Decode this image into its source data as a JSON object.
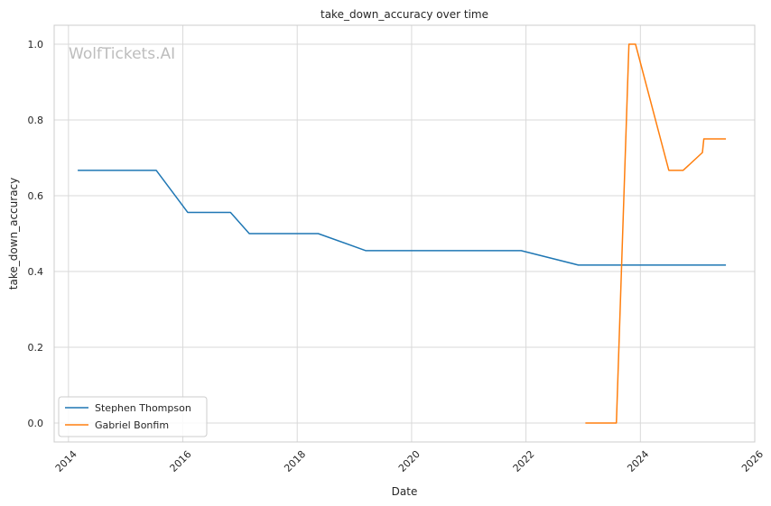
{
  "chart_data": {
    "type": "line",
    "title": "take_down_accuracy over time",
    "xlabel": "Date",
    "ylabel": "take_down_accuracy",
    "watermark": "WolfTickets.AI",
    "xlim": [
      2013.75,
      2026.0
    ],
    "ylim": [
      -0.05,
      1.05
    ],
    "x_ticks": [
      2014,
      2016,
      2018,
      2020,
      2022,
      2024,
      2026
    ],
    "x_tick_labels": [
      "2014",
      "2016",
      "2018",
      "2020",
      "2022",
      "2024",
      "2026"
    ],
    "y_ticks": [
      0.0,
      0.2,
      0.4,
      0.6,
      0.8,
      1.0
    ],
    "y_tick_labels": [
      "0.0",
      "0.2",
      "0.4",
      "0.6",
      "0.8",
      "1.0"
    ],
    "grid": true,
    "legend_position": "lower-left",
    "series": [
      {
        "name": "Stephen Thompson",
        "color": "#1f77b4",
        "points": [
          [
            "2014-03-01",
            0.667
          ],
          [
            "2015-07-15",
            0.667
          ],
          [
            "2016-02-01",
            0.556
          ],
          [
            "2016-11-01",
            0.556
          ],
          [
            "2017-03-01",
            0.5
          ],
          [
            "2018-05-15",
            0.5
          ],
          [
            "2019-03-15",
            0.455
          ],
          [
            "2021-12-01",
            0.455
          ],
          [
            "2022-12-01",
            0.417
          ],
          [
            "2025-07-01",
            0.417
          ]
        ]
      },
      {
        "name": "Gabriel Bonfim",
        "color": "#ff7f0e",
        "points": [
          [
            "2023-01-15",
            0.0
          ],
          [
            "2023-08-01",
            0.0
          ],
          [
            "2023-10-20",
            1.0
          ],
          [
            "2023-12-01",
            1.0
          ],
          [
            "2024-07-01",
            0.667
          ],
          [
            "2024-10-01",
            0.667
          ],
          [
            "2025-02-01",
            0.714
          ],
          [
            "2025-02-10",
            0.75
          ],
          [
            "2025-07-01",
            0.75
          ]
        ]
      }
    ]
  }
}
